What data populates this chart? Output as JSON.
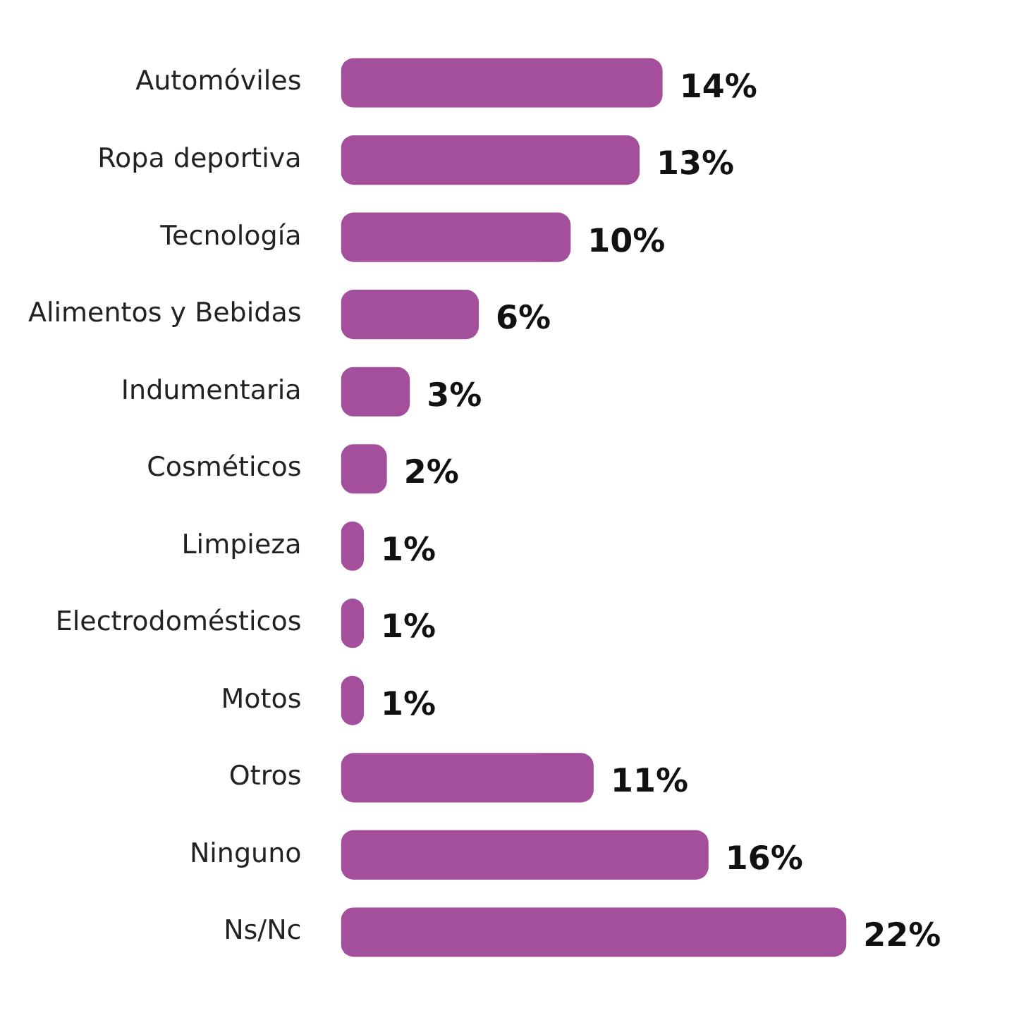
{
  "chart_data": {
    "type": "bar",
    "orientation": "horizontal",
    "categories": [
      "Automóviles",
      "Ropa deportiva",
      "Tecnología",
      "Alimentos y Bebidas",
      "Indumentaria",
      "Cosméticos",
      "Limpieza",
      "Electrodomésticos",
      "Motos",
      "Otros",
      "Ninguno",
      "Ns/Nc"
    ],
    "values": [
      14,
      13,
      10,
      6,
      3,
      2,
      1,
      1,
      1,
      11,
      16,
      22
    ],
    "value_labels": [
      "14%",
      "13%",
      "10%",
      "6%",
      "3%",
      "2%",
      "1%",
      "1%",
      "1%",
      "11%",
      "16%",
      "22%"
    ],
    "color": "#a44f9c"
  }
}
